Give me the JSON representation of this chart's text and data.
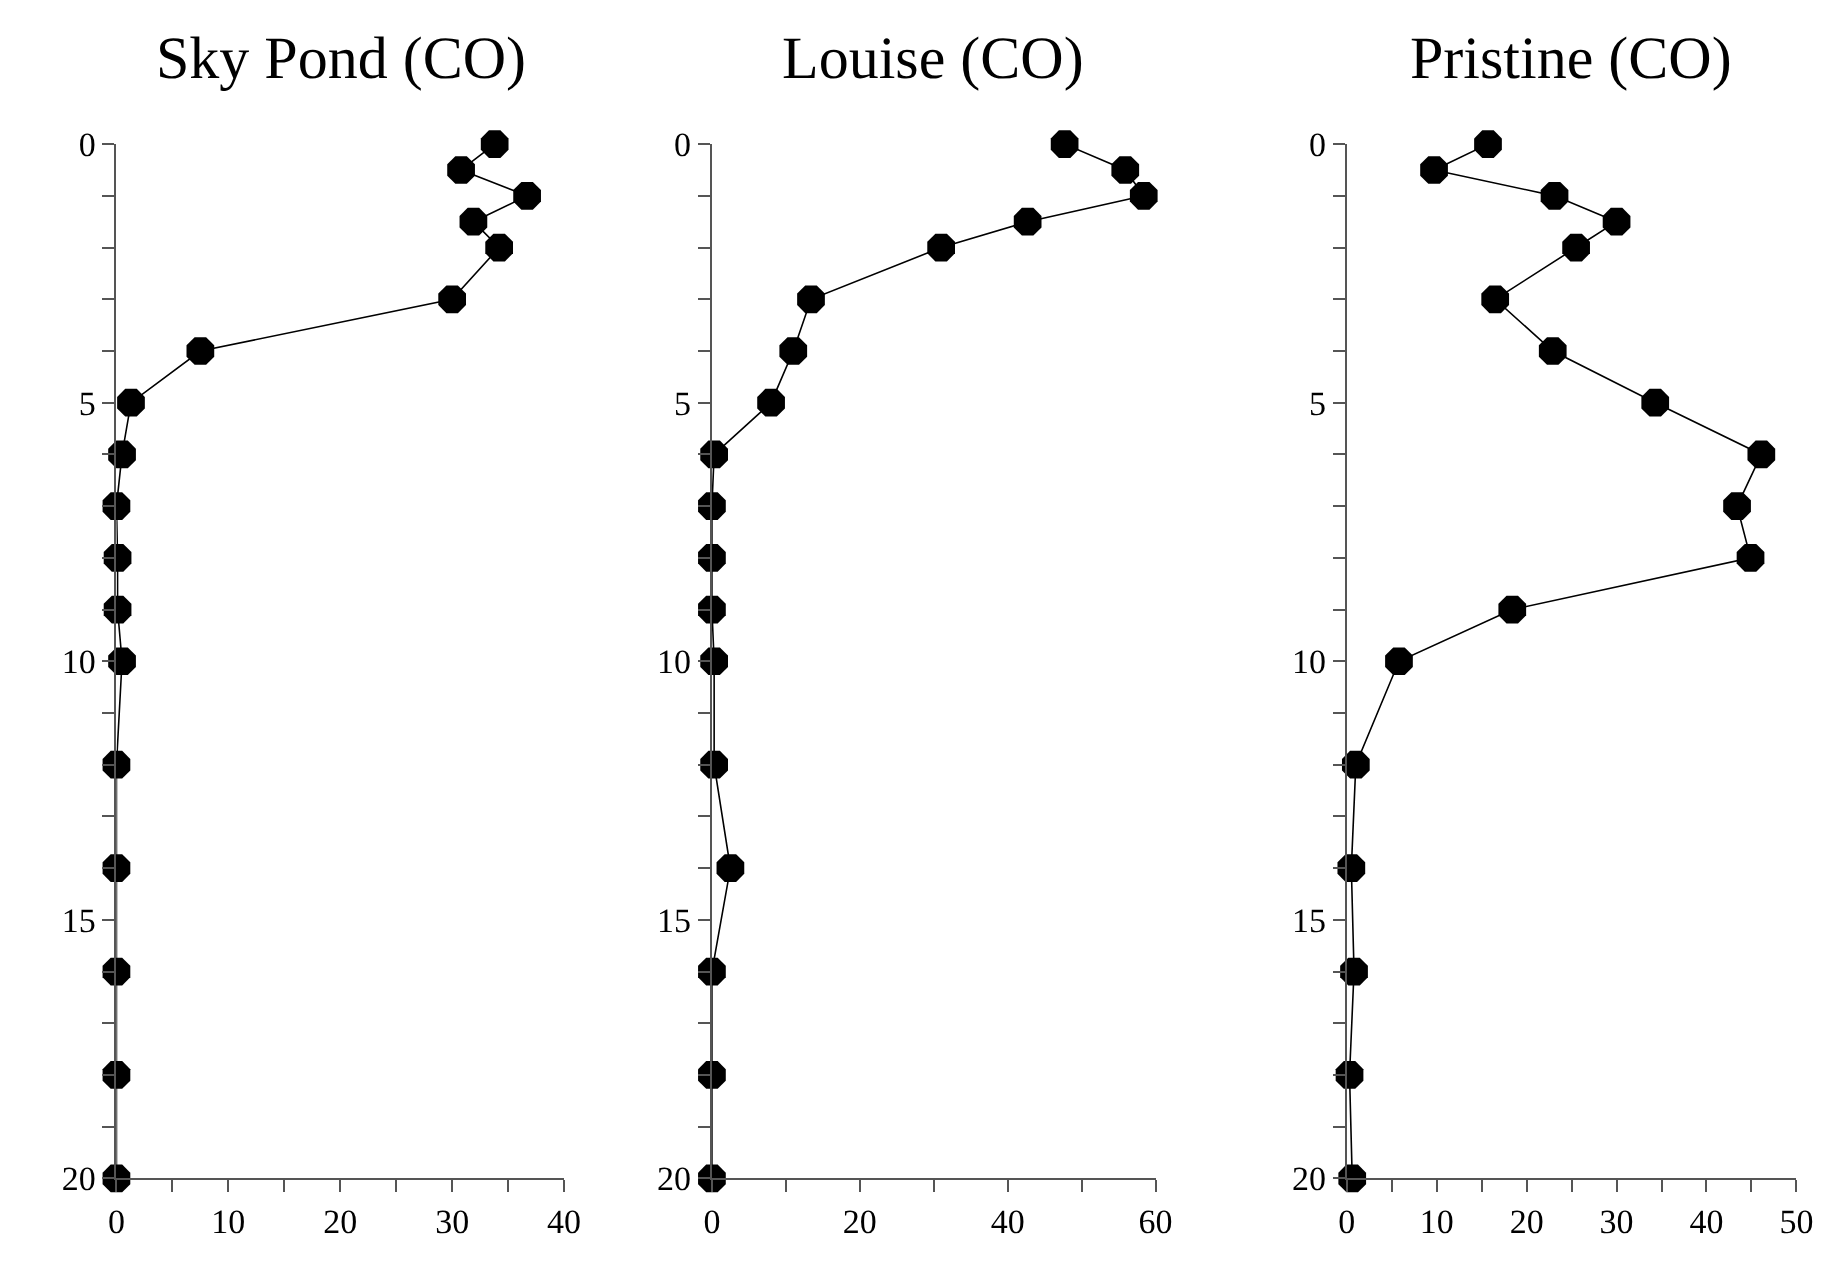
{
  "chart_data": [
    {
      "type": "line",
      "title": "Sky Pond (CO)",
      "marker": "circle",
      "line_style": "solid",
      "x": [
        33.8,
        30.8,
        36.7,
        31.9,
        34.2,
        30,
        7.5,
        1.3,
        0.5,
        0,
        0.1,
        0.1,
        0.5,
        0,
        0,
        0,
        0,
        0
      ],
      "values": [
        0,
        0.5,
        1,
        1.5,
        2,
        3,
        4,
        5,
        6,
        7,
        8,
        9,
        10,
        12,
        14,
        16,
        18,
        20
      ],
      "color": "#000000",
      "xlim": [
        0,
        40
      ],
      "xticks": [
        0,
        {
          "value": 5,
          "label": null
        },
        10,
        {
          "value": 15,
          "label": null
        },
        20,
        {
          "value": 25,
          "label": null
        },
        30,
        {
          "value": 35,
          "label": null
        },
        40
      ],
      "ylim": [
        20,
        0
      ],
      "yticks": [
        0,
        {
          "value": 1,
          "label": null
        },
        {
          "value": 2,
          "label": null
        },
        {
          "value": 3,
          "label": null
        },
        {
          "value": 4,
          "label": null
        },
        5,
        {
          "value": 6,
          "label": null
        },
        {
          "value": 7,
          "label": null
        },
        {
          "value": 8,
          "label": null
        },
        {
          "value": 9,
          "label": null
        },
        10,
        {
          "value": 11,
          "label": null
        },
        {
          "value": 12,
          "label": null
        },
        {
          "value": 13,
          "label": null
        },
        {
          "value": 14,
          "label": null
        },
        15,
        {
          "value": 16,
          "label": null
        },
        {
          "value": 17,
          "label": null
        },
        {
          "value": 18,
          "label": null
        },
        {
          "value": 19,
          "label": null
        },
        20
      ]
    },
    {
      "type": "line",
      "title": "Louise (CO)",
      "marker": "circle",
      "line_style": "solid",
      "x": [
        47.7,
        55.9,
        58.4,
        42.7,
        31,
        13.4,
        11,
        8,
        0.3,
        0,
        0,
        0,
        0.3,
        0.3,
        2.5,
        0,
        0,
        0
      ],
      "values": [
        0,
        0.5,
        1,
        1.5,
        2,
        3,
        4,
        5,
        6,
        7,
        8,
        9,
        10,
        12,
        14,
        16,
        18,
        20
      ],
      "color": "#000000",
      "xlim": [
        0,
        60
      ],
      "xticks": [
        0,
        {
          "value": 10,
          "label": null
        },
        20,
        {
          "value": 30,
          "label": null
        },
        40,
        {
          "value": 50,
          "label": null
        },
        60
      ],
      "ylim": [
        20,
        0
      ],
      "yticks": [
        0,
        {
          "value": 1,
          "label": null
        },
        {
          "value": 2,
          "label": null
        },
        {
          "value": 3,
          "label": null
        },
        {
          "value": 4,
          "label": null
        },
        5,
        {
          "value": 6,
          "label": null
        },
        {
          "value": 7,
          "label": null
        },
        {
          "value": 8,
          "label": null
        },
        {
          "value": 9,
          "label": null
        },
        10,
        {
          "value": 11,
          "label": null
        },
        {
          "value": 12,
          "label": null
        },
        {
          "value": 13,
          "label": null
        },
        {
          "value": 14,
          "label": null
        },
        15,
        {
          "value": 16,
          "label": null
        },
        {
          "value": 17,
          "label": null
        },
        {
          "value": 18,
          "label": null
        },
        {
          "value": 19,
          "label": null
        },
        20
      ]
    },
    {
      "type": "line",
      "title": "Pristine (CO)",
      "marker": "circle",
      "line_style": "solid",
      "x": [
        15.7,
        9.7,
        23.1,
        30,
        25.5,
        16.5,
        22.9,
        34.3,
        46.1,
        43.4,
        44.9,
        18.4,
        5.8,
        1,
        0.5,
        0.8,
        0.3,
        0.6
      ],
      "values": [
        0,
        0.5,
        1,
        1.5,
        2,
        3,
        4,
        5,
        6,
        7,
        8,
        9,
        10,
        12,
        14,
        16,
        18,
        20
      ],
      "color": "#000000",
      "xlim": [
        0,
        50
      ],
      "xticks": [
        0,
        {
          "value": 5,
          "label": null
        },
        10,
        {
          "value": 15,
          "label": null
        },
        20,
        {
          "value": 25,
          "label": null
        },
        30,
        {
          "value": 35,
          "label": null
        },
        40,
        {
          "value": 45,
          "label": null
        },
        50
      ],
      "ylim": [
        20,
        0
      ],
      "yticks": [
        0,
        {
          "value": 1,
          "label": null
        },
        {
          "value": 2,
          "label": null
        },
        {
          "value": 3,
          "label": null
        },
        {
          "value": 4,
          "label": null
        },
        5,
        {
          "value": 6,
          "label": null
        },
        {
          "value": 7,
          "label": null
        },
        {
          "value": 8,
          "label": null
        },
        {
          "value": 9,
          "label": null
        },
        10,
        {
          "value": 11,
          "label": null
        },
        {
          "value": 12,
          "label": null
        },
        {
          "value": 13,
          "label": null
        },
        {
          "value": 14,
          "label": null
        },
        15,
        {
          "value": 16,
          "label": null
        },
        {
          "value": 17,
          "label": null
        },
        {
          "value": 18,
          "label": null
        },
        {
          "value": 19,
          "label": null
        },
        20
      ]
    }
  ]
}
